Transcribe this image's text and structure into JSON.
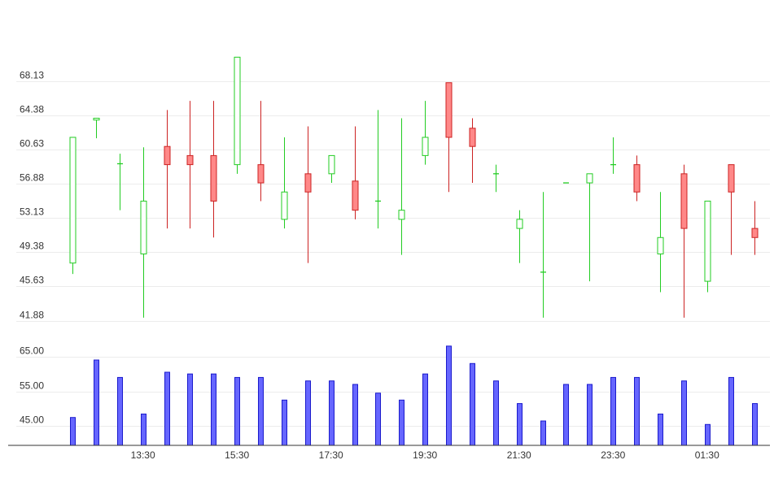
{
  "chart_data": [
    {
      "type": "candlestick",
      "title": "",
      "ylim": [
        41.88,
        71.5
      ],
      "y_ticks": [
        "68.13",
        "64.38",
        "60.63",
        "56.88",
        "53.13",
        "49.38",
        "45.63",
        "41.88"
      ],
      "x_tick_labels": [
        "13:30",
        "15:30",
        "17:30",
        "19:30",
        "21:30",
        "23:30",
        "01:30"
      ],
      "colors": {
        "up": "#22cc22",
        "down_stroke": "#cc2222",
        "down_fill": "#ff8888"
      },
      "candles": [
        {
          "open": 48.2,
          "high": 62.0,
          "low": 47.0,
          "close": 62.0
        },
        {
          "open": 63.9,
          "high": 64.1,
          "low": 61.9,
          "close": 64.1
        },
        {
          "open": 59.1,
          "high": 60.2,
          "low": 54.0,
          "close": 59.1
        },
        {
          "open": 49.2,
          "high": 60.9,
          "low": 42.2,
          "close": 55.0
        },
        {
          "open": 61.0,
          "high": 65.0,
          "low": 52.0,
          "close": 59.0
        },
        {
          "open": 60.0,
          "high": 66.0,
          "low": 52.0,
          "close": 59.0
        },
        {
          "open": 60.0,
          "high": 66.0,
          "low": 51.0,
          "close": 55.0
        },
        {
          "open": 59.0,
          "high": 70.8,
          "low": 58.0,
          "close": 70.8
        },
        {
          "open": 59.0,
          "high": 66.0,
          "low": 55.0,
          "close": 57.0
        },
        {
          "open": 53.0,
          "high": 62.0,
          "low": 52.0,
          "close": 56.0
        },
        {
          "open": 58.0,
          "high": 63.2,
          "low": 48.2,
          "close": 56.0
        },
        {
          "open": 58.0,
          "high": 60.0,
          "low": 57.0,
          "close": 60.0
        },
        {
          "open": 57.2,
          "high": 63.2,
          "low": 53.0,
          "close": 54.0
        },
        {
          "open": 55.0,
          "high": 65.0,
          "low": 52.0,
          "close": 55.0
        },
        {
          "open": 53.0,
          "high": 64.1,
          "low": 49.1,
          "close": 54.0
        },
        {
          "open": 60.0,
          "high": 66.0,
          "low": 59.0,
          "close": 62.0
        },
        {
          "open": 68.0,
          "high": 68.0,
          "low": 56.0,
          "close": 62.0
        },
        {
          "open": 63.0,
          "high": 64.1,
          "low": 57.0,
          "close": 61.0
        },
        {
          "open": 58.0,
          "high": 59.0,
          "low": 56.0,
          "close": 58.0
        },
        {
          "open": 52.0,
          "high": 54.0,
          "low": 48.2,
          "close": 53.0
        },
        {
          "open": 47.2,
          "high": 56.0,
          "low": 42.2,
          "close": 47.2
        },
        {
          "open": 57.0,
          "high": 57.0,
          "low": 57.0,
          "close": 57.0
        },
        {
          "open": 57.0,
          "high": 58.0,
          "low": 46.2,
          "close": 58.0
        },
        {
          "open": 59.0,
          "high": 62.0,
          "low": 58.0,
          "close": 59.0
        },
        {
          "open": 59.0,
          "high": 60.0,
          "low": 55.0,
          "close": 56.0
        },
        {
          "open": 49.2,
          "high": 56.0,
          "low": 45.0,
          "close": 51.0
        },
        {
          "open": 58.0,
          "high": 59.0,
          "low": 42.2,
          "close": 52.0
        },
        {
          "open": 46.2,
          "high": 55.0,
          "low": 45.0,
          "close": 55.0
        },
        {
          "open": 59.0,
          "high": 59.0,
          "low": 49.1,
          "close": 56.0
        },
        {
          "open": 52.0,
          "high": 55.0,
          "low": 49.1,
          "close": 51.0
        }
      ]
    },
    {
      "type": "bar",
      "title": "",
      "ylim": [
        39.5,
        67.5
      ],
      "y_ticks": [
        "65.00",
        "55.00",
        "45.00"
      ],
      "color": "#6666ff",
      "values": [
        47.5,
        64,
        59,
        48.5,
        60.5,
        60,
        60,
        59,
        59,
        52.5,
        58,
        58,
        57,
        54.5,
        52.5,
        60,
        68,
        63,
        58,
        51.5,
        46.5,
        57,
        57,
        59,
        59,
        48.5,
        58,
        45.5,
        59,
        51.5
      ]
    }
  ]
}
